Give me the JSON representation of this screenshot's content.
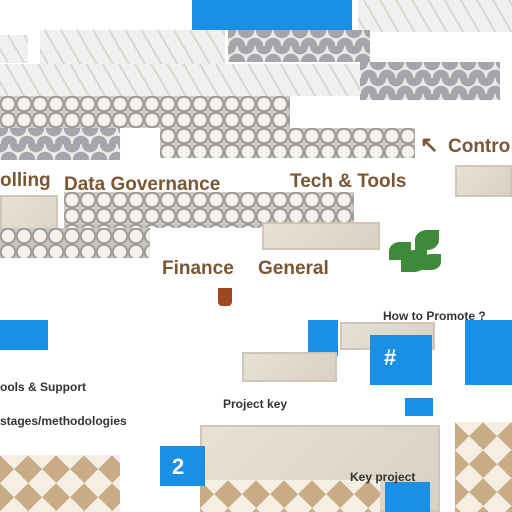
{
  "labels": {
    "control": "Contro",
    "controlling": "olling",
    "data_governance": "Data Governance",
    "tech_tools": "Tech & Tools",
    "finance": "Finance",
    "general": "General",
    "how_to_promote": "How to Promote ?",
    "tools_support": "ools & Support",
    "stages": "stages/methodologies",
    "project_key": "Project key",
    "key_project": "Key project"
  }
}
